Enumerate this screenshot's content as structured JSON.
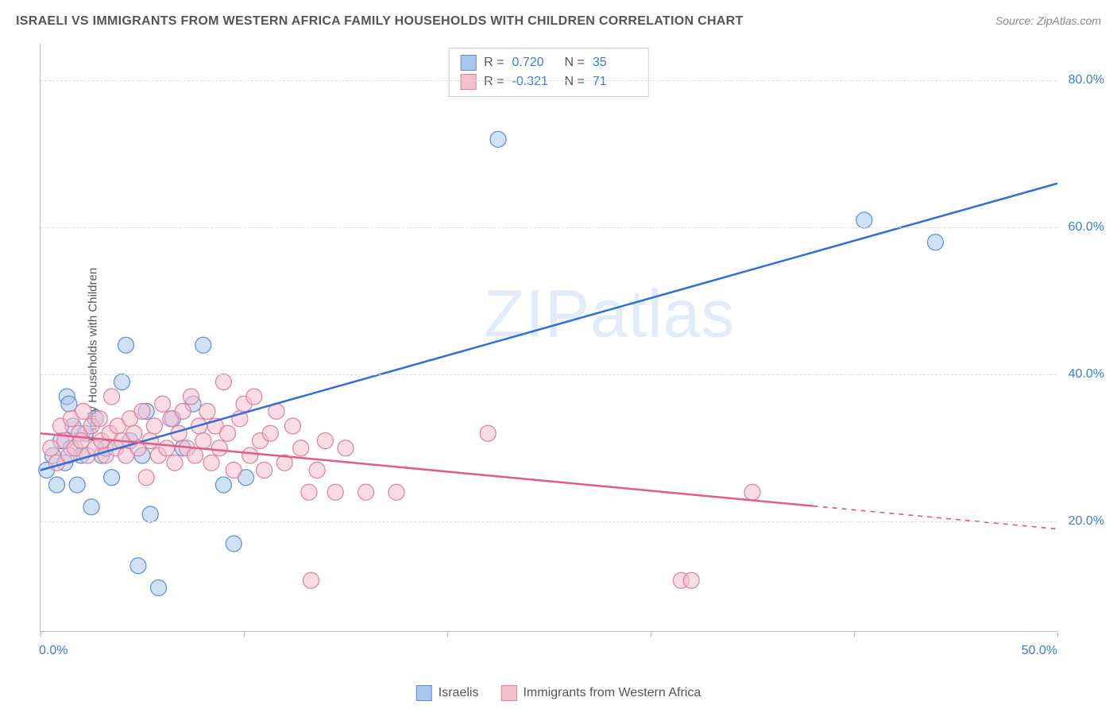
{
  "title": "ISRAELI VS IMMIGRANTS FROM WESTERN AFRICA FAMILY HOUSEHOLDS WITH CHILDREN CORRELATION CHART",
  "source": "Source: ZipAtlas.com",
  "y_axis_label": "Family Households with Children",
  "watermark": "ZIPatlas",
  "chart": {
    "type": "scatter",
    "background_color": "#ffffff",
    "grid_color": "#dddddd",
    "axis_color": "#bbbbbb",
    "tick_label_color": "#3b7dd8",
    "xlim": [
      0,
      50
    ],
    "ylim": [
      5,
      85
    ],
    "x_ticks": [
      0,
      10,
      20,
      30,
      40,
      50
    ],
    "x_tick_labels": [
      "0.0%",
      "",
      "",
      "",
      "",
      "50.0%"
    ],
    "y_ticks": [
      20,
      40,
      60,
      80
    ],
    "y_tick_labels": [
      "20.0%",
      "40.0%",
      "60.0%",
      "80.0%"
    ],
    "marker_radius": 10,
    "marker_opacity": 0.55,
    "line_width": 2.5,
    "series": [
      {
        "name": "Israelis",
        "legend_label": "Israelis",
        "fill_color": "#a9c7ec",
        "stroke_color": "#5b8fd6",
        "line_color": "#2e6fd9",
        "R": "0.720",
        "N": "35",
        "regression": {
          "x1": 0,
          "y1": 27,
          "x2": 50,
          "y2": 66,
          "solid_until_x": 50
        },
        "points": [
          [
            0.3,
            27
          ],
          [
            0.6,
            29
          ],
          [
            0.8,
            25
          ],
          [
            1.0,
            31
          ],
          [
            1.2,
            28
          ],
          [
            1.3,
            37
          ],
          [
            1.4,
            36
          ],
          [
            1.5,
            30
          ],
          [
            1.6,
            33
          ],
          [
            1.8,
            25
          ],
          [
            2.0,
            29
          ],
          [
            2.2,
            32
          ],
          [
            2.5,
            22
          ],
          [
            2.7,
            34
          ],
          [
            3.0,
            29
          ],
          [
            3.2,
            30
          ],
          [
            3.5,
            26
          ],
          [
            4.0,
            39
          ],
          [
            4.2,
            44
          ],
          [
            4.4,
            31
          ],
          [
            4.8,
            14
          ],
          [
            5.0,
            29
          ],
          [
            5.2,
            35
          ],
          [
            5.4,
            21
          ],
          [
            5.8,
            11
          ],
          [
            6.5,
            34
          ],
          [
            7.0,
            30
          ],
          [
            7.5,
            36
          ],
          [
            8.0,
            44
          ],
          [
            9.0,
            25
          ],
          [
            9.5,
            17
          ],
          [
            10.1,
            26
          ],
          [
            22.5,
            72
          ],
          [
            40.5,
            61
          ],
          [
            44.0,
            58
          ]
        ]
      },
      {
        "name": "Immigrants from Western Africa",
        "legend_label": "Immigrants from Western Africa",
        "fill_color": "#f5c0cd",
        "stroke_color": "#e07f9c",
        "line_color": "#e65b85",
        "R": "-0.321",
        "N": "71",
        "regression": {
          "x1": 0,
          "y1": 32,
          "x2": 50,
          "y2": 19,
          "solid_until_x": 38
        },
        "points": [
          [
            0.5,
            30
          ],
          [
            0.8,
            28
          ],
          [
            1.0,
            33
          ],
          [
            1.2,
            31
          ],
          [
            1.4,
            29
          ],
          [
            1.5,
            34
          ],
          [
            1.7,
            30
          ],
          [
            1.9,
            32
          ],
          [
            2.0,
            31
          ],
          [
            2.1,
            35
          ],
          [
            2.3,
            29
          ],
          [
            2.5,
            33
          ],
          [
            2.7,
            30
          ],
          [
            2.9,
            34
          ],
          [
            3.0,
            31
          ],
          [
            3.2,
            29
          ],
          [
            3.4,
            32
          ],
          [
            3.5,
            37
          ],
          [
            3.7,
            30
          ],
          [
            3.8,
            33
          ],
          [
            4.0,
            31
          ],
          [
            4.2,
            29
          ],
          [
            4.4,
            34
          ],
          [
            4.6,
            32
          ],
          [
            4.8,
            30
          ],
          [
            5.0,
            35
          ],
          [
            5.2,
            26
          ],
          [
            5.4,
            31
          ],
          [
            5.6,
            33
          ],
          [
            5.8,
            29
          ],
          [
            6.0,
            36
          ],
          [
            6.2,
            30
          ],
          [
            6.4,
            34
          ],
          [
            6.6,
            28
          ],
          [
            6.8,
            32
          ],
          [
            7.0,
            35
          ],
          [
            7.2,
            30
          ],
          [
            7.4,
            37
          ],
          [
            7.6,
            29
          ],
          [
            7.8,
            33
          ],
          [
            8.0,
            31
          ],
          [
            8.2,
            35
          ],
          [
            8.4,
            28
          ],
          [
            8.6,
            33
          ],
          [
            8.8,
            30
          ],
          [
            9.0,
            39
          ],
          [
            9.2,
            32
          ],
          [
            9.5,
            27
          ],
          [
            9.8,
            34
          ],
          [
            10.0,
            36
          ],
          [
            10.3,
            29
          ],
          [
            10.5,
            37
          ],
          [
            10.8,
            31
          ],
          [
            11.0,
            27
          ],
          [
            11.3,
            32
          ],
          [
            11.6,
            35
          ],
          [
            12.0,
            28
          ],
          [
            12.4,
            33
          ],
          [
            12.8,
            30
          ],
          [
            13.2,
            24
          ],
          [
            13.3,
            12
          ],
          [
            13.6,
            27
          ],
          [
            14.0,
            31
          ],
          [
            14.5,
            24
          ],
          [
            15.0,
            30
          ],
          [
            16.0,
            24
          ],
          [
            17.5,
            24
          ],
          [
            22.0,
            32
          ],
          [
            31.5,
            12
          ],
          [
            32.0,
            12
          ],
          [
            35.0,
            24
          ]
        ]
      }
    ]
  },
  "legend_top_labels": {
    "R": "R =",
    "N": "N ="
  }
}
